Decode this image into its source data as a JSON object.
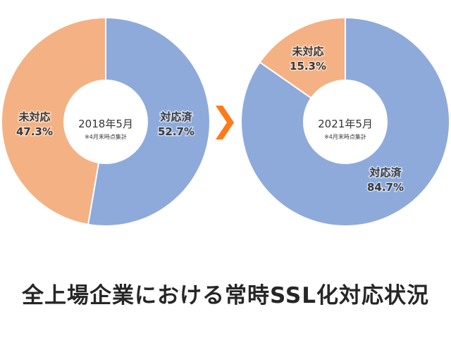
{
  "chart_data": [
    {
      "type": "pie",
      "title": "2018年5月",
      "note": "※4月末時点集計",
      "slices": [
        {
          "label": "対応済",
          "value": 52.7,
          "value_text": "52.7%",
          "color": "#8eaadb"
        },
        {
          "label": "未対応",
          "value": 47.3,
          "value_text": "47.3%",
          "color": "#f4b183"
        }
      ]
    },
    {
      "type": "pie",
      "title": "2021年5月",
      "note": "※4月末時点集計",
      "slices": [
        {
          "label": "対応済",
          "value": 84.7,
          "value_text": "84.7%",
          "color": "#8eaadb"
        },
        {
          "label": "未対応",
          "value": 15.3,
          "value_text": "15.3%",
          "color": "#f4b183"
        }
      ]
    }
  ],
  "arrow": {
    "icon": "right-arrow-icon",
    "color": "#ff7a1a"
  },
  "caption": "全上場企業における常時SSL化対応状況"
}
